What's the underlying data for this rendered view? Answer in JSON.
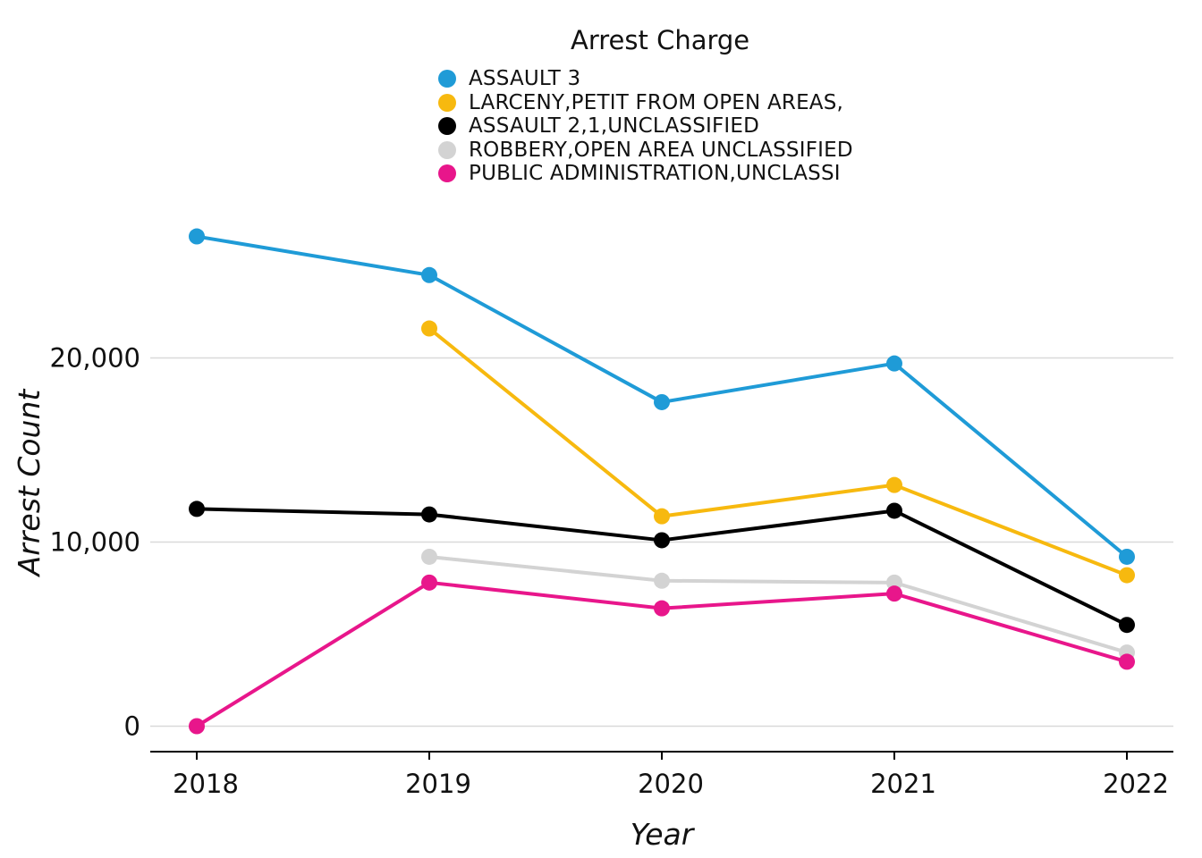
{
  "chart_data": {
    "type": "line",
    "x": [
      2018,
      2019,
      2020,
      2021,
      2022
    ],
    "x_tick_labels": [
      "2018",
      "2019",
      "2020",
      "2021",
      "2022"
    ],
    "xlabel": "Year",
    "ylabel": "Arrest Count",
    "ylim": [
      -1400,
      28000
    ],
    "y_ticks": [
      0,
      10000,
      20000
    ],
    "y_tick_labels": [
      "0",
      "10,000",
      "20,000"
    ],
    "grid": "horizontal major",
    "legend_title": "Arrest Charge",
    "legend_position": "top",
    "series": [
      {
        "name": "ASSAULT 3",
        "color": "#1f9bd7",
        "values": [
          26600,
          24500,
          17600,
          19700,
          9200
        ]
      },
      {
        "name": "LARCENY,PETIT FROM OPEN AREAS,",
        "color": "#f7b90f",
        "values": [
          null,
          21600,
          11400,
          13100,
          8200
        ]
      },
      {
        "name": "ASSAULT 2,1,UNCLASSIFIED",
        "color": "#000000",
        "values": [
          11800,
          11500,
          10100,
          11700,
          5500
        ]
      },
      {
        "name": "ROBBERY,OPEN AREA UNCLASSIFIED",
        "color": "#d3d3d3",
        "values": [
          null,
          9200,
          7900,
          7800,
          4000
        ]
      },
      {
        "name": "PUBLIC ADMINISTRATION,UNCLASSI",
        "color": "#e8168b",
        "values": [
          0,
          7800,
          6400,
          7200,
          3500
        ]
      }
    ]
  }
}
